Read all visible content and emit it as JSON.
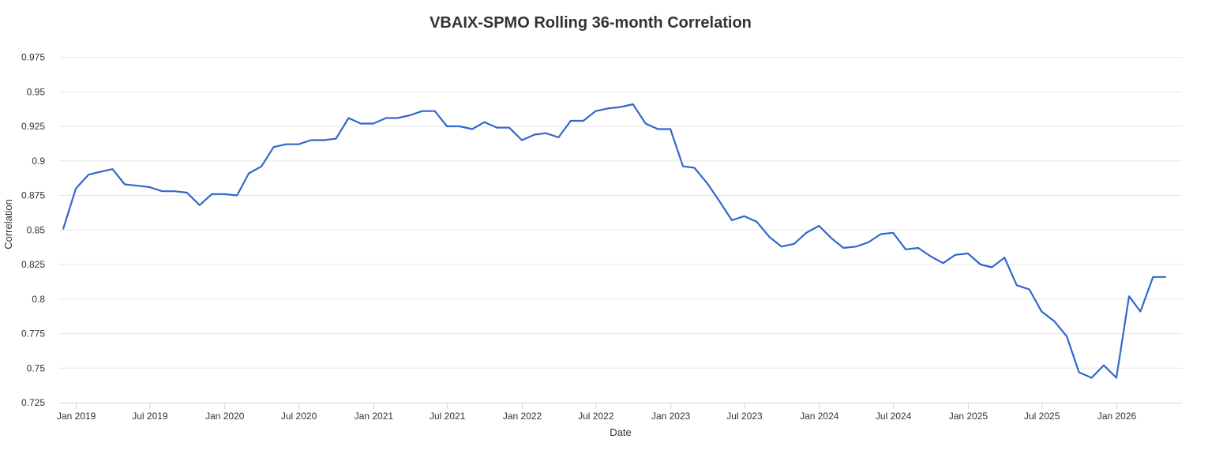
{
  "chart_data": {
    "type": "line",
    "title": "VBAIX-SPMO Rolling 36-month Correlation",
    "xlabel": "Date",
    "ylabel": "Correlation",
    "y_ticks": [
      0.725,
      0.75,
      0.775,
      0.8,
      0.825,
      0.85,
      0.875,
      0.9,
      0.925,
      0.95,
      0.975
    ],
    "y_tick_labels": [
      "0.725",
      "0.75",
      "0.775",
      "0.8",
      "0.825",
      "0.85",
      "0.875",
      "0.9",
      "0.925",
      "0.95",
      "0.975"
    ],
    "ylim": [
      0.725,
      0.985
    ],
    "xlim": [
      "2018-11-20",
      "2026-06-10"
    ],
    "x_ticks": [
      "2019-01-01",
      "2019-07-01",
      "2020-01-01",
      "2020-07-01",
      "2021-01-01",
      "2021-07-01",
      "2022-01-01",
      "2022-07-01",
      "2023-01-01",
      "2023-07-01",
      "2024-01-01",
      "2024-07-01",
      "2025-01-01",
      "2025-07-01",
      "2026-01-01"
    ],
    "x_tick_labels": [
      "Jan 2019",
      "Jul 2019",
      "Jan 2020",
      "Jul 2020",
      "Jan 2021",
      "Jul 2021",
      "Jan 2022",
      "Jul 2022",
      "Jan 2023",
      "Jul 2023",
      "Jan 2024",
      "Jul 2024",
      "Jan 2025",
      "Jul 2025",
      "Jan 2026"
    ],
    "grid": true,
    "legend": "none",
    "series": [
      {
        "color": "#3366cc",
        "x": [
          "2018-11-30",
          "2018-12-31",
          "2019-01-31",
          "2019-02-28",
          "2019-03-31",
          "2019-04-30",
          "2019-05-31",
          "2019-06-30",
          "2019-07-31",
          "2019-08-31",
          "2019-09-30",
          "2019-10-31",
          "2019-11-30",
          "2019-12-31",
          "2020-01-31",
          "2020-02-29",
          "2020-03-31",
          "2020-04-30",
          "2020-05-31",
          "2020-06-30",
          "2020-07-31",
          "2020-08-31",
          "2020-09-30",
          "2020-10-31",
          "2020-11-30",
          "2020-12-31",
          "2021-01-31",
          "2021-02-28",
          "2021-03-31",
          "2021-04-30",
          "2021-05-31",
          "2021-06-30",
          "2021-07-31",
          "2021-08-31",
          "2021-09-30",
          "2021-10-31",
          "2021-11-30",
          "2021-12-31",
          "2022-01-31",
          "2022-02-28",
          "2022-03-31",
          "2022-04-30",
          "2022-05-31",
          "2022-06-30",
          "2022-07-31",
          "2022-08-31",
          "2022-09-30",
          "2022-10-31",
          "2022-11-30",
          "2022-12-31",
          "2023-01-31",
          "2023-02-28",
          "2023-03-31",
          "2023-04-30",
          "2023-05-31",
          "2023-06-30",
          "2023-07-31",
          "2023-08-31",
          "2023-09-30",
          "2023-10-31",
          "2023-11-30",
          "2023-12-31",
          "2024-01-31",
          "2024-02-29",
          "2024-03-31",
          "2024-04-30",
          "2024-05-31",
          "2024-06-30",
          "2024-07-31",
          "2024-08-31",
          "2024-09-30",
          "2024-10-31",
          "2024-11-30",
          "2024-12-31",
          "2025-01-31",
          "2025-02-28",
          "2025-03-31",
          "2025-04-30",
          "2025-05-31",
          "2025-06-30",
          "2025-07-31",
          "2025-08-31",
          "2025-09-30",
          "2025-10-31",
          "2025-11-30",
          "2025-12-31",
          "2026-01-31",
          "2026-02-28",
          "2026-03-31",
          "2026-04-30"
        ],
        "values": [
          0.851,
          0.88,
          0.89,
          0.892,
          0.894,
          0.883,
          0.882,
          0.881,
          0.878,
          0.878,
          0.877,
          0.868,
          0.876,
          0.876,
          0.875,
          0.891,
          0.896,
          0.91,
          0.912,
          0.912,
          0.915,
          0.915,
          0.916,
          0.931,
          0.927,
          0.927,
          0.931,
          0.931,
          0.933,
          0.936,
          0.936,
          0.925,
          0.925,
          0.923,
          0.928,
          0.924,
          0.924,
          0.915,
          0.919,
          0.92,
          0.917,
          0.929,
          0.929,
          0.936,
          0.938,
          0.939,
          0.941,
          0.927,
          0.923,
          0.923,
          0.896,
          0.895,
          0.884,
          0.871,
          0.857,
          0.86,
          0.856,
          0.845,
          0.838,
          0.84,
          0.848,
          0.853,
          0.844,
          0.837,
          0.838,
          0.841,
          0.847,
          0.848,
          0.836,
          0.837,
          0.831,
          0.826,
          0.832,
          0.833,
          0.825,
          0.823,
          0.83,
          0.81,
          0.807,
          0.791,
          0.784,
          0.773,
          0.747,
          0.743,
          0.752,
          0.743,
          0.802,
          0.791,
          0.816,
          0.816
        ]
      }
    ]
  }
}
